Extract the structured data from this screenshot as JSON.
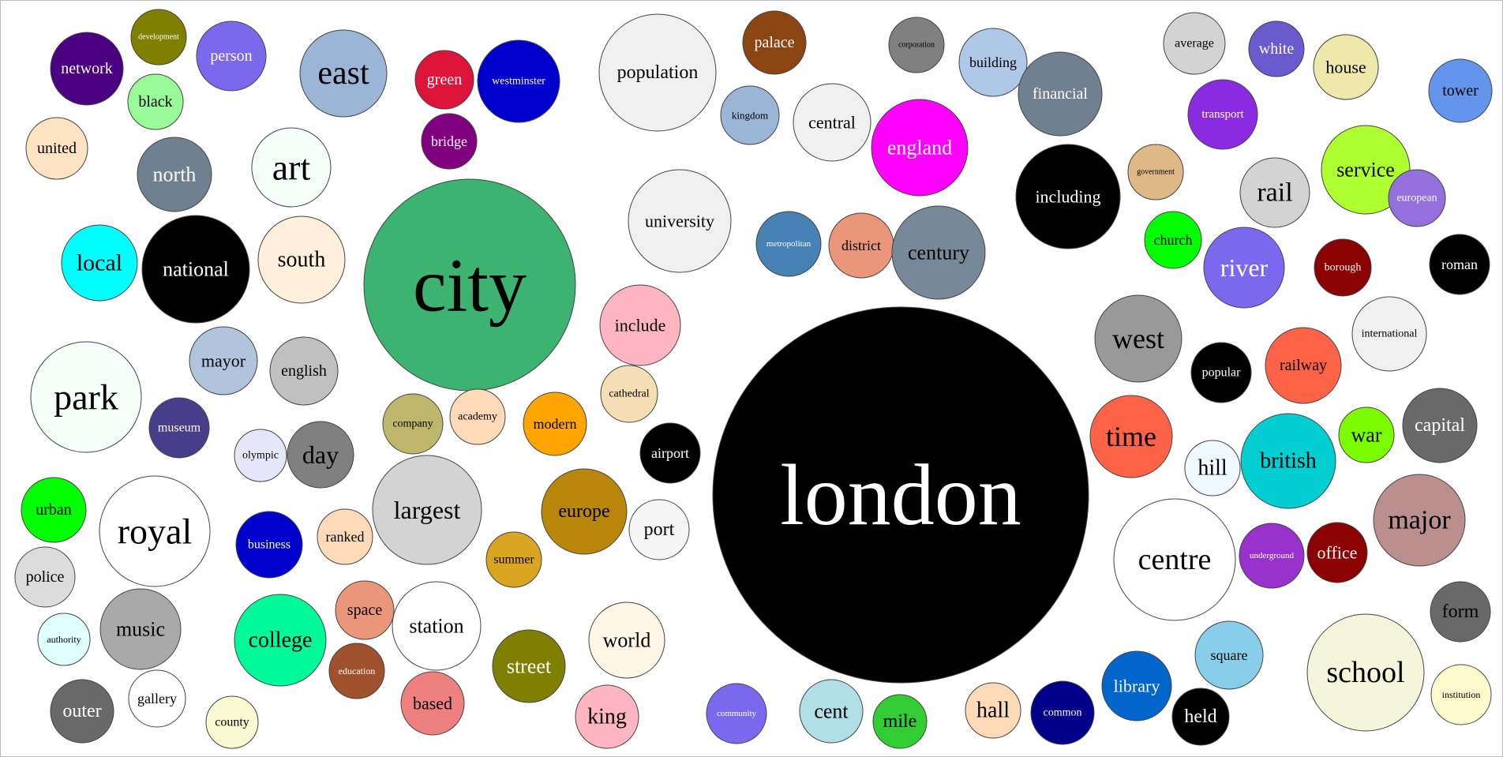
{
  "bubbles": [
    {
      "word": "london",
      "color": "#000000",
      "text_color": "#ffffff"
    },
    {
      "word": "city",
      "color": "#3cb371",
      "text_color": "#000000"
    },
    {
      "word": "network",
      "color": "#4b0082",
      "text_color": "#ffffff"
    },
    {
      "word": "development",
      "color": "#808000",
      "text_color": "#ffffff"
    },
    {
      "word": "person",
      "color": "#7b68ee",
      "text_color": "#ffffff"
    },
    {
      "word": "black",
      "color": "#98fb98",
      "text_color": "#000000"
    },
    {
      "word": "east",
      "color": "#9ab5d6",
      "text_color": "#000000"
    },
    {
      "word": "green",
      "color": "#dc143c",
      "text_color": "#ffffff"
    },
    {
      "word": "westminster",
      "color": "#0000cd",
      "text_color": "#ffffff"
    },
    {
      "word": "bridge",
      "color": "#800080",
      "text_color": "#ffffff"
    },
    {
      "word": "united",
      "color": "#ffe4c4",
      "text_color": "#000000"
    },
    {
      "word": "north",
      "color": "#708090",
      "text_color": "#ffffff"
    },
    {
      "word": "art",
      "color": "#f5fffa",
      "text_color": "#000000"
    },
    {
      "word": "local",
      "color": "#00ffff",
      "text_color": "#000000"
    },
    {
      "word": "national",
      "color": "#000000",
      "text_color": "#ffffff"
    },
    {
      "word": "south",
      "color": "#fff0db",
      "text_color": "#000000"
    },
    {
      "word": "park",
      "color": "#f5fffa",
      "text_color": "#000000"
    },
    {
      "word": "mayor",
      "color": "#b0c4de",
      "text_color": "#000000"
    },
    {
      "word": "english",
      "color": "#c0c0c0",
      "text_color": "#000000"
    },
    {
      "word": "museum",
      "color": "#483d8b",
      "text_color": "#ffffff"
    },
    {
      "word": "olympic",
      "color": "#e6e6fa",
      "text_color": "#000000"
    },
    {
      "word": "day",
      "color": "#808080",
      "text_color": "#000000"
    },
    {
      "word": "urban",
      "color": "#00ff00",
      "text_color": "#000000"
    },
    {
      "word": "royal",
      "color": "#ffffff",
      "text_color": "#000000"
    },
    {
      "word": "police",
      "color": "#dcdcdc",
      "text_color": "#000000"
    },
    {
      "word": "authority",
      "color": "#e0ffff",
      "text_color": "#000000"
    },
    {
      "word": "music",
      "color": "#a9a9a9",
      "text_color": "#000000"
    },
    {
      "word": "gallery",
      "color": "#ffffff",
      "text_color": "#000000"
    },
    {
      "word": "outer",
      "color": "#696969",
      "text_color": "#ffffff"
    },
    {
      "word": "county",
      "color": "#fafad2",
      "text_color": "#000000"
    },
    {
      "word": "business",
      "color": "#0000cd",
      "text_color": "#ffffff"
    },
    {
      "word": "ranked",
      "color": "#ffdab9",
      "text_color": "#000000"
    },
    {
      "word": "college",
      "color": "#00fa9a",
      "text_color": "#000000"
    },
    {
      "word": "space",
      "color": "#e9967a",
      "text_color": "#000000"
    },
    {
      "word": "education",
      "color": "#a0522d",
      "text_color": "#ffffff"
    },
    {
      "word": "station",
      "color": "#ffffff",
      "text_color": "#000000"
    },
    {
      "word": "based",
      "color": "#f08080",
      "text_color": "#000000"
    },
    {
      "word": "largest",
      "color": "#d3d3d3",
      "text_color": "#000000"
    },
    {
      "word": "company",
      "color": "#bdb76b",
      "text_color": "#000000"
    },
    {
      "word": "academy",
      "color": "#ffdab9",
      "text_color": "#000000"
    },
    {
      "word": "modern",
      "color": "#ffa500",
      "text_color": "#000000"
    },
    {
      "word": "europe",
      "color": "#b8860b",
      "text_color": "#000000"
    },
    {
      "word": "summer",
      "color": "#daa520",
      "text_color": "#000000"
    },
    {
      "word": "street",
      "color": "#808000",
      "text_color": "#ffffff"
    },
    {
      "word": "population",
      "color": "#f0f0f0",
      "text_color": "#000000"
    },
    {
      "word": "university",
      "color": "#f0f0f0",
      "text_color": "#000000"
    },
    {
      "word": "include",
      "color": "#ffb6c1",
      "text_color": "#000000"
    },
    {
      "word": "cathedral",
      "color": "#f5deb3",
      "text_color": "#000000"
    },
    {
      "word": "airport",
      "color": "#000000",
      "text_color": "#ffffff"
    },
    {
      "word": "port",
      "color": "#f5f5f5",
      "text_color": "#000000"
    },
    {
      "word": "world",
      "color": "#fdf5e6",
      "text_color": "#000000"
    },
    {
      "word": "king",
      "color": "#ffb6c1",
      "text_color": "#000000"
    },
    {
      "word": "palace",
      "color": "#8b4513",
      "text_color": "#ffffff"
    },
    {
      "word": "kingdom",
      "color": "#9ab5d6",
      "text_color": "#000000"
    },
    {
      "word": "central",
      "color": "#f0f0f0",
      "text_color": "#000000"
    },
    {
      "word": "corporation",
      "color": "#808080",
      "text_color": "#000000"
    },
    {
      "word": "building",
      "color": "#b0c8e8",
      "text_color": "#000000"
    },
    {
      "word": "england",
      "color": "#ff00ff",
      "text_color": "#ffffff"
    },
    {
      "word": "metropolitan",
      "color": "#4682b4",
      "text_color": "#ffffff"
    },
    {
      "word": "district",
      "color": "#e9967a",
      "text_color": "#000000"
    },
    {
      "word": "century",
      "color": "#778899",
      "text_color": "#000000"
    },
    {
      "word": "community",
      "color": "#7b68ee",
      "text_color": "#ffffff"
    },
    {
      "word": "cent",
      "color": "#b0e0e6",
      "text_color": "#000000"
    },
    {
      "word": "mile",
      "color": "#32cd32",
      "text_color": "#000000"
    },
    {
      "word": "hall",
      "color": "#ffdab9",
      "text_color": "#000000"
    },
    {
      "word": "common",
      "color": "#00008b",
      "text_color": "#ffffff"
    },
    {
      "word": "library",
      "color": "#0066cc",
      "text_color": "#ffffff"
    },
    {
      "word": "held",
      "color": "#000000",
      "text_color": "#ffffff"
    },
    {
      "word": "financial",
      "color": "#708090",
      "text_color": "#ffffff"
    },
    {
      "word": "including",
      "color": "#000000",
      "text_color": "#ffffff"
    },
    {
      "word": "average",
      "color": "#d3d3d3",
      "text_color": "#000000"
    },
    {
      "word": "white",
      "color": "#6a5acd",
      "text_color": "#ffffff"
    },
    {
      "word": "house",
      "color": "#eee8aa",
      "text_color": "#000000"
    },
    {
      "word": "tower",
      "color": "#6495ed",
      "text_color": "#000000"
    },
    {
      "word": "transport",
      "color": "#8a2be2",
      "text_color": "#ffffff"
    },
    {
      "word": "government",
      "color": "#deb887",
      "text_color": "#000000"
    },
    {
      "word": "rail",
      "color": "#d3d3d3",
      "text_color": "#000000"
    },
    {
      "word": "service",
      "color": "#adff2f",
      "text_color": "#000000"
    },
    {
      "word": "european",
      "color": "#9370db",
      "text_color": "#ffffff"
    },
    {
      "word": "church",
      "color": "#00ff00",
      "text_color": "#000000"
    },
    {
      "word": "river",
      "color": "#7b68ee",
      "text_color": "#ffffff"
    },
    {
      "word": "borough",
      "color": "#8b0000",
      "text_color": "#ffffff"
    },
    {
      "word": "roman",
      "color": "#000000",
      "text_color": "#ffffff"
    },
    {
      "word": "west",
      "color": "#999999",
      "text_color": "#000000"
    },
    {
      "word": "international",
      "color": "#f0f0f0",
      "text_color": "#000000"
    },
    {
      "word": "popular",
      "color": "#000000",
      "text_color": "#ffffff"
    },
    {
      "word": "railway",
      "color": "#ff6347",
      "text_color": "#000000"
    },
    {
      "word": "time",
      "color": "#ff6347",
      "text_color": "#000000"
    },
    {
      "word": "hill",
      "color": "#f0f8ff",
      "text_color": "#000000"
    },
    {
      "word": "british",
      "color": "#00ced1",
      "text_color": "#000000"
    },
    {
      "word": "war",
      "color": "#7cfc00",
      "text_color": "#000000"
    },
    {
      "word": "capital",
      "color": "#696969",
      "text_color": "#ffffff"
    },
    {
      "word": "major",
      "color": "#bc8f8f",
      "text_color": "#000000"
    },
    {
      "word": "centre",
      "color": "#ffffff",
      "text_color": "#000000"
    },
    {
      "word": "underground",
      "color": "#9932cc",
      "text_color": "#ffffff"
    },
    {
      "word": "office",
      "color": "#8b0000",
      "text_color": "#ffffff"
    },
    {
      "word": "form",
      "color": "#696969",
      "text_color": "#000000"
    },
    {
      "word": "square",
      "color": "#87ceeb",
      "text_color": "#000000"
    },
    {
      "word": "school",
      "color": "#f5f5dc",
      "text_color": "#000000"
    },
    {
      "word": "institution",
      "color": "#fffacd",
      "text_color": "#000000"
    }
  ]
}
